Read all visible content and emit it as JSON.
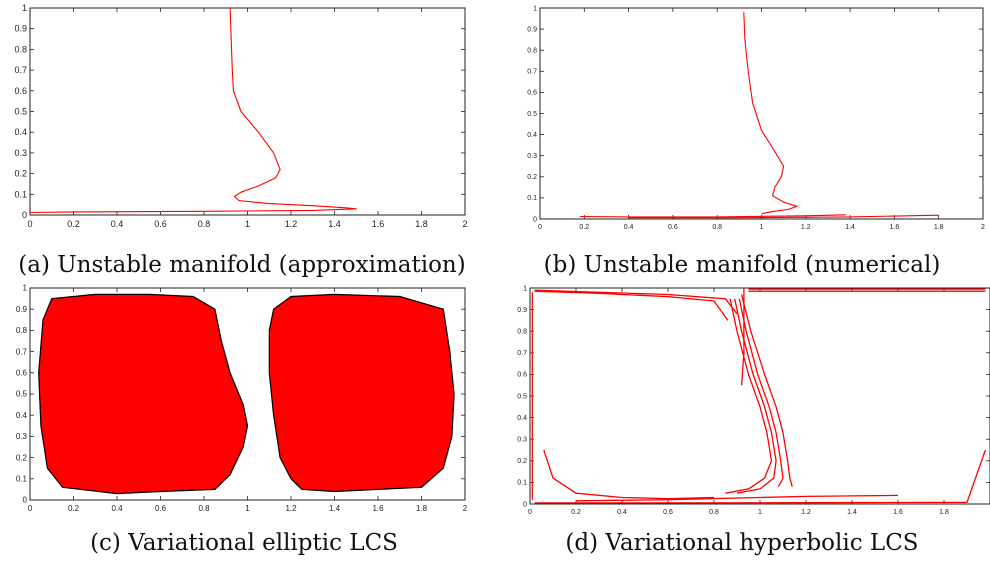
{
  "colors": {
    "curve": "#ff0000",
    "fill": "#ff0000",
    "axis": "#222222",
    "background": "#ffffff"
  },
  "chart_data": [
    {
      "type": "line",
      "caption": "(a) Unstable manifold (approximation)",
      "xlim": [
        0,
        2
      ],
      "ylim": [
        0,
        1
      ],
      "xticks": [
        "0",
        "0.2",
        "0.4",
        "0.6",
        "0.8",
        "1",
        "1.2",
        "1.4",
        "1.6",
        "1.8",
        "2"
      ],
      "yticks": [
        "0",
        "0.1",
        "0.2",
        "0.3",
        "0.4",
        "0.5",
        "0.6",
        "0.7",
        "0.8",
        "0.9",
        "1"
      ],
      "grid": false,
      "series": [
        {
          "x": [
            0.92,
            0.925,
            0.93,
            0.935,
            0.97,
            1.05,
            1.12,
            1.15,
            1.13,
            1.05,
            0.97,
            0.94,
            0.96,
            1.1,
            1.3,
            1.45,
            1.5,
            1.3,
            0.8,
            0.2,
            0.0
          ],
          "y": [
            1.0,
            0.85,
            0.7,
            0.6,
            0.5,
            0.4,
            0.3,
            0.22,
            0.18,
            0.14,
            0.11,
            0.09,
            0.07,
            0.055,
            0.045,
            0.035,
            0.03,
            0.022,
            0.018,
            0.015,
            0.012
          ]
        }
      ]
    },
    {
      "type": "line",
      "caption": "(b) Unstable manifold (numerical)",
      "xlim": [
        0,
        2
      ],
      "ylim": [
        0,
        1
      ],
      "xticks": [
        "0",
        "0.2",
        "0.4",
        "0.6",
        "0.8",
        "1",
        "1.2",
        "1.4",
        "1.6",
        "1.8",
        "2"
      ],
      "yticks": [
        "0",
        "0.1",
        "0.2",
        "0.3",
        "0.4",
        "0.5",
        "0.6",
        "0.7",
        "0.8",
        "0.9",
        "1"
      ],
      "grid": false,
      "series": [
        {
          "x": [
            0.92,
            0.925,
            0.94,
            0.96,
            1.0,
            1.06,
            1.1,
            1.09,
            1.06,
            1.05,
            1.1,
            1.16,
            1.12,
            1.05,
            1.0
          ],
          "y": [
            0.98,
            0.85,
            0.7,
            0.55,
            0.42,
            0.32,
            0.25,
            0.2,
            0.15,
            0.11,
            0.08,
            0.06,
            0.045,
            0.035,
            0.025
          ]
        },
        {
          "x": [
            0.18,
            0.4,
            0.8,
            1.2,
            1.38
          ],
          "y": [
            0.012,
            0.01,
            0.01,
            0.015,
            0.02
          ]
        },
        {
          "x": [
            0.4,
            0.9,
            1.4,
            1.8
          ],
          "y": [
            0.006,
            0.006,
            0.01,
            0.018
          ]
        }
      ]
    },
    {
      "type": "area",
      "caption": "(c) Variational elliptic LCS",
      "xlim": [
        0,
        2
      ],
      "ylim": [
        0,
        1
      ],
      "xticks": [
        "0",
        "0.2",
        "0.4",
        "0.6",
        "0.8",
        "1",
        "1.2",
        "1.4",
        "1.6",
        "1.8",
        "2"
      ],
      "yticks": [
        "0",
        "0.1",
        "0.2",
        "0.3",
        "0.4",
        "0.5",
        "0.6",
        "0.7",
        "0.8",
        "0.9",
        "1"
      ],
      "grid": false,
      "regions": [
        {
          "x": [
            0.1,
            0.3,
            0.55,
            0.75,
            0.85,
            0.88,
            0.92,
            0.98,
            1.0,
            0.98,
            0.92,
            0.85,
            0.6,
            0.4,
            0.15,
            0.08,
            0.05,
            0.04,
            0.06
          ],
          "y": [
            0.95,
            0.97,
            0.97,
            0.96,
            0.9,
            0.75,
            0.6,
            0.45,
            0.35,
            0.25,
            0.12,
            0.05,
            0.04,
            0.03,
            0.06,
            0.15,
            0.35,
            0.6,
            0.85
          ]
        },
        {
          "x": [
            1.12,
            1.2,
            1.4,
            1.7,
            1.9,
            1.93,
            1.95,
            1.94,
            1.9,
            1.8,
            1.6,
            1.4,
            1.25,
            1.2,
            1.15,
            1.12,
            1.1,
            1.1
          ],
          "y": [
            0.9,
            0.96,
            0.97,
            0.96,
            0.9,
            0.7,
            0.5,
            0.3,
            0.15,
            0.06,
            0.05,
            0.04,
            0.05,
            0.1,
            0.2,
            0.4,
            0.6,
            0.8
          ]
        }
      ]
    },
    {
      "type": "line",
      "caption": "(d) Variational hyperbolic LCS",
      "xlim": [
        0,
        2
      ],
      "ylim": [
        0,
        1
      ],
      "xticks": [
        "0",
        "0.2",
        "0.4",
        "0.6",
        "0.8",
        "1",
        "1.2",
        "1.4",
        "1.6",
        "1.8"
      ],
      "yticks": [
        "0",
        "0.1",
        "0.2",
        "0.3",
        "0.4",
        "0.5",
        "0.6",
        "0.7",
        "0.8",
        "0.9",
        "1"
      ],
      "grid": false,
      "series": [
        {
          "x": [
            0.02,
            0.3,
            0.6,
            0.85,
            0.9
          ],
          "y": [
            0.99,
            0.98,
            0.97,
            0.95,
            0.88
          ]
        },
        {
          "x": [
            0.02,
            0.3,
            0.6,
            0.8,
            0.86
          ],
          "y": [
            0.985,
            0.975,
            0.96,
            0.94,
            0.85
          ]
        },
        {
          "x": [
            0.93,
            0.93,
            0.92
          ],
          "y": [
            1.0,
            0.7,
            0.55
          ]
        },
        {
          "x": [
            0.95,
            1.3,
            1.98
          ],
          "y": [
            0.995,
            0.995,
            0.995
          ]
        },
        {
          "x": [
            0.95,
            1.3,
            1.98
          ],
          "y": [
            0.985,
            0.985,
            0.985
          ]
        },
        {
          "x": [
            0.87,
            0.9,
            0.95,
            1.0,
            1.03,
            1.05,
            1.02,
            0.95,
            0.85
          ],
          "y": [
            0.95,
            0.8,
            0.6,
            0.45,
            0.33,
            0.2,
            0.12,
            0.07,
            0.05
          ]
        },
        {
          "x": [
            0.89,
            0.92,
            0.97,
            1.02,
            1.05,
            1.07,
            1.06,
            1.0,
            0.9
          ],
          "y": [
            0.95,
            0.8,
            0.6,
            0.45,
            0.33,
            0.2,
            0.12,
            0.07,
            0.05
          ]
        },
        {
          "x": [
            0.91,
            0.94,
            0.99,
            1.04,
            1.07,
            1.09,
            1.1,
            1.08
          ],
          "y": [
            0.95,
            0.8,
            0.6,
            0.45,
            0.33,
            0.2,
            0.12,
            0.08
          ]
        },
        {
          "x": [
            0.92,
            0.96,
            1.02,
            1.07,
            1.1,
            1.12,
            1.13,
            1.14
          ],
          "y": [
            0.97,
            0.8,
            0.6,
            0.45,
            0.33,
            0.2,
            0.12,
            0.08
          ]
        },
        {
          "x": [
            0.06,
            0.1,
            0.2,
            0.4,
            0.6,
            0.8
          ],
          "y": [
            0.25,
            0.12,
            0.05,
            0.03,
            0.025,
            0.03
          ]
        },
        {
          "x": [
            0.2,
            0.6,
            1.0,
            1.2,
            1.6
          ],
          "y": [
            0.015,
            0.02,
            0.03,
            0.035,
            0.04
          ]
        },
        {
          "x": [
            0.02,
            0.6,
            1.2,
            1.9,
            1.98
          ],
          "y": [
            0.005,
            0.005,
            0.006,
            0.008,
            0.25
          ]
        },
        {
          "x": [
            0.01,
            0.01
          ],
          "y": [
            0.02,
            0.98
          ]
        }
      ]
    }
  ]
}
